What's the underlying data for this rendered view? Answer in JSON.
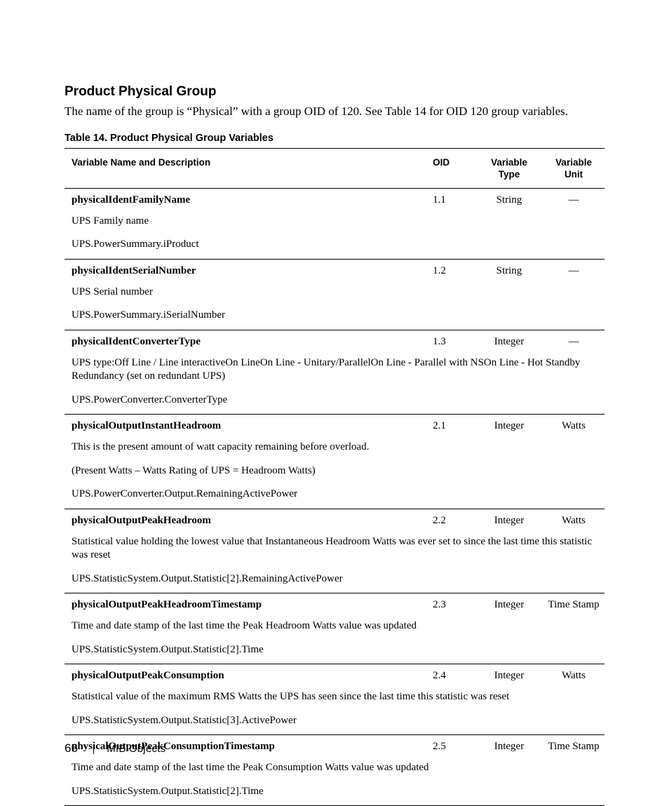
{
  "heading": "Product Physical Group",
  "intro": "The name of the group is “Physical” with a group OID of 120. See Table 14 for OID 120 group variables.",
  "table_caption": "Table 14. Product Physical Group Variables",
  "columns": {
    "name": "Variable Name and Description",
    "oid": "OID",
    "type_l1": "Variable",
    "type_l2": "Type",
    "unit_l1": "Variable",
    "unit_l2": "Unit"
  },
  "rows": [
    {
      "name": "physicalIdentFamilyName",
      "oid": "1.1",
      "type": "String",
      "unit": "—",
      "desc": [
        "UPS Family name",
        "UPS.PowerSummary.iProduct"
      ]
    },
    {
      "name": "physicalIdentSerialNumber",
      "oid": "1.2",
      "type": "String",
      "unit": "—",
      "desc": [
        "UPS Serial number",
        "UPS.PowerSummary.iSerialNumber"
      ]
    },
    {
      "name": "physicalIdentConverterType",
      "oid": "1.3",
      "type": "Integer",
      "unit": "—",
      "desc": [
        "UPS type:Off Line / Line interactiveOn LineOn Line - Unitary/ParallelOn Line - Parallel with NSOn Line - Hot Standby Redundancy (set on redundant UPS)",
        "UPS.PowerConverter.ConverterType"
      ]
    },
    {
      "name": "physicalOutputInstantHeadroom",
      "oid": "2.1",
      "type": "Integer",
      "unit": "Watts",
      "desc": [
        "This is the present amount of watt capacity remaining before overload.",
        "(Present Watts – Watts Rating of UPS = Headroom Watts)",
        "UPS.PowerConverter.Output.RemainingActivePower"
      ]
    },
    {
      "name": "physicalOutputPeakHeadroom",
      "oid": "2.2",
      "type": "Integer",
      "unit": "Watts",
      "desc": [
        "Statistical value holding the lowest value that Instantaneous Headroom Watts was ever set to since the last time this statistic was reset",
        "UPS.StatisticSystem.Output.Statistic[2].RemainingActivePower"
      ]
    },
    {
      "name": "physicalOutputPeakHeadroomTimestamp",
      "oid": "2.3",
      "type": "Integer",
      "unit": "Time Stamp",
      "desc": [
        "Time and date stamp of the last time the Peak Headroom Watts value was updated",
        "UPS.StatisticSystem.Output.Statistic[2].Time"
      ]
    },
    {
      "name": "physicalOutputPeakConsumption",
      "oid": "2.4",
      "type": "Integer",
      "unit": "Watts",
      "desc": [
        "Statistical value of the maximum RMS Watts the UPS has seen since the last time this statistic was reset",
        "UPS.StatisticSystem.Output.Statistic[3].ActivePower"
      ]
    },
    {
      "name": "physicalOutputPeakConsumptionTimestamp",
      "oid": "2.5",
      "type": "Integer",
      "unit": "Time Stamp",
      "desc": [
        "Time and date stamp of the last time the Peak Consumption Watts value was updated",
        "UPS.StatisticSystem.Output.Statistic[2].Time"
      ]
    }
  ],
  "footer": {
    "page_number": "66",
    "section": "MIB Objects"
  }
}
